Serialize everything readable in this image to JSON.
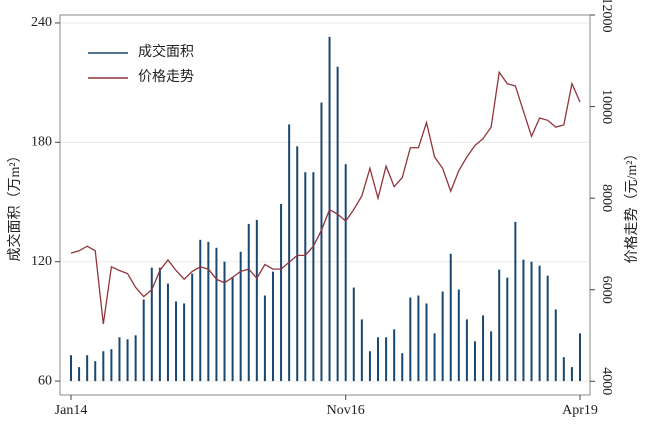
{
  "chart_data": {
    "type": "bar_line",
    "categories": [
      "Jan14",
      null,
      null,
      null,
      null,
      null,
      null,
      null,
      null,
      null,
      null,
      null,
      null,
      null,
      null,
      null,
      null,
      null,
      null,
      null,
      null,
      null,
      null,
      null,
      null,
      null,
      null,
      null,
      null,
      null,
      null,
      null,
      null,
      null,
      "Nov16",
      null,
      null,
      null,
      null,
      null,
      null,
      null,
      null,
      null,
      null,
      null,
      null,
      null,
      null,
      null,
      null,
      null,
      null,
      null,
      null,
      null,
      null,
      null,
      null,
      null,
      null,
      null,
      null,
      "Apr19"
    ],
    "series": [
      {
        "name": "成交面积",
        "color": "#1a476f",
        "type": "bar",
        "axis": "y",
        "values": [
          73,
          67,
          73,
          70,
          75,
          76,
          82,
          81,
          83,
          101,
          117,
          117,
          109,
          100,
          99,
          114,
          131,
          130,
          127,
          120,
          112,
          125,
          139,
          141,
          103,
          115,
          149,
          189,
          178,
          165,
          165,
          200,
          233,
          218,
          169,
          107,
          91,
          75,
          82,
          82,
          86,
          74,
          102,
          103,
          99,
          84,
          105,
          124,
          106,
          91,
          80,
          93,
          85,
          116,
          112,
          140,
          121,
          120,
          118,
          113,
          96,
          72,
          67,
          84
        ]
      },
      {
        "name": "价格走势",
        "color": "#90353b",
        "type": "line",
        "axis": "y2",
        "values": [
          6800,
          6850,
          6950,
          6850,
          5250,
          6500,
          6420,
          6350,
          6050,
          5850,
          6000,
          6420,
          6650,
          6420,
          6230,
          6400,
          6500,
          6450,
          6230,
          6150,
          6270,
          6400,
          6450,
          6250,
          6550,
          6450,
          6450,
          6600,
          6750,
          6750,
          6950,
          7300,
          7750,
          7650,
          7500,
          7750,
          8050,
          8650,
          8000,
          8700,
          8250,
          8450,
          9100,
          9100,
          9650,
          8900,
          8650,
          8150,
          8600,
          8900,
          9150,
          9300,
          9550,
          10750,
          10500,
          10450,
          9900,
          9350,
          9750,
          9700,
          9550,
          9600,
          10500,
          10100
        ]
      }
    ],
    "ylabel": "成交面积（万m²）",
    "y2label": "价格走势（元/m²）",
    "ylim": [
      53,
      244
    ],
    "yticks": [
      60,
      120,
      180,
      240
    ],
    "y2lim": [
      3700,
      12000
    ],
    "y2ticks": [
      4000,
      6000,
      8000,
      10000,
      12000
    ],
    "grid": true,
    "legend": "upper left"
  }
}
